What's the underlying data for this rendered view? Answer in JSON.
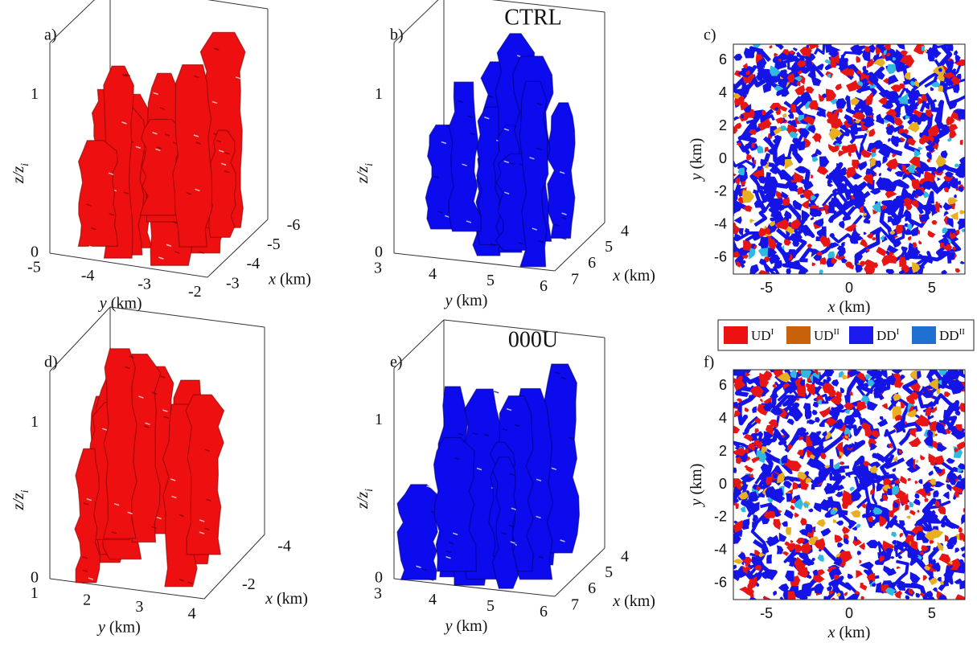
{
  "titles": {
    "top": "CTRL",
    "bottom": "000U"
  },
  "panels": [
    {
      "label": "a)",
      "z_axis": {
        "var": "z/z",
        "sub": "i",
        "ticks": [
          "0",
          "1"
        ]
      },
      "y_axis": {
        "var": "y",
        "unit": "(km)",
        "ticks": [
          "-5",
          "-4",
          "-3",
          "-2"
        ]
      },
      "x_axis": {
        "var": "x",
        "unit": "(km)",
        "ticks": [
          "-6",
          "-5",
          "-4",
          "-3"
        ]
      }
    },
    {
      "label": "b)",
      "z_axis": {
        "var": "z/z",
        "sub": "i",
        "ticks": [
          "0",
          "1"
        ]
      },
      "y_axis": {
        "var": "y",
        "unit": "(km)",
        "ticks": [
          "3",
          "4",
          "5",
          "6"
        ]
      },
      "x_axis": {
        "var": "x",
        "unit": "(km)",
        "ticks": [
          "4",
          "5",
          "6",
          "7"
        ]
      }
    },
    {
      "label": "c)",
      "x_axis": {
        "var": "x",
        "unit": "(km)",
        "ticks": [
          "-5",
          "0",
          "5"
        ]
      },
      "y_axis": {
        "var": "y",
        "unit": "(km)",
        "ticks": [
          "6",
          "4",
          "2",
          "0",
          "-2",
          "-4",
          "-6"
        ]
      }
    },
    {
      "label": "d)",
      "z_axis": {
        "var": "z/z",
        "sub": "i",
        "ticks": [
          "0",
          "1"
        ]
      },
      "y_axis": {
        "var": "y",
        "unit": "(km)",
        "ticks": [
          "1",
          "2",
          "3",
          "4"
        ]
      },
      "x_axis": {
        "var": "x",
        "unit": "(km)",
        "ticks": [
          "-4",
          "-2"
        ]
      }
    },
    {
      "label": "e)",
      "z_axis": {
        "var": "z/z",
        "sub": "i",
        "ticks": [
          "0",
          "1"
        ]
      },
      "y_axis": {
        "var": "y",
        "unit": "(km)",
        "ticks": [
          "3",
          "4",
          "5",
          "6"
        ]
      },
      "x_axis": {
        "var": "x",
        "unit": "(km)",
        "ticks": [
          "4",
          "5",
          "6",
          "7"
        ]
      }
    },
    {
      "label": "f)",
      "x_axis": {
        "var": "x",
        "unit": "(km)",
        "ticks": [
          "-5",
          "0",
          "5"
        ]
      },
      "y_axis": {
        "var": "y",
        "unit": "(km)",
        "ticks": [
          "6",
          "4",
          "2",
          "0",
          "-2",
          "-4",
          "-6"
        ]
      }
    }
  ],
  "legend": [
    {
      "name": "UD",
      "sup": "I",
      "color": "#ee1111"
    },
    {
      "name": "UD",
      "sup": "II",
      "color": "#c8620a"
    },
    {
      "name": "DD",
      "sup": "I",
      "color": "#1a1aee"
    },
    {
      "name": "DD",
      "sup": "II",
      "color": "#1f70d0"
    }
  ]
}
